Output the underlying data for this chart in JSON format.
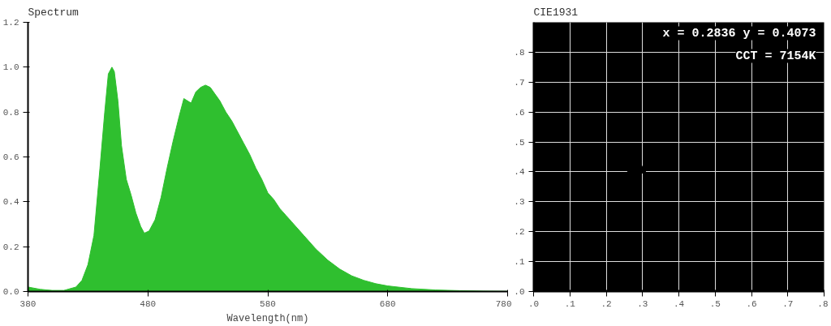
{
  "chart_data": [
    {
      "type": "area",
      "title": "Spectrum",
      "xlabel": "Wavelength(nm)",
      "x": [
        380,
        390,
        400,
        410,
        420,
        425,
        430,
        435,
        440,
        444,
        447,
        450,
        452,
        455,
        458,
        462,
        466,
        470,
        474,
        477,
        481,
        486,
        491,
        496,
        501,
        506,
        510,
        513,
        516,
        520,
        524,
        528,
        532,
        536,
        540,
        545,
        550,
        555,
        560,
        565,
        570,
        575,
        580,
        585,
        590,
        595,
        600,
        610,
        620,
        630,
        640,
        650,
        660,
        670,
        680,
        700,
        720,
        740,
        760,
        780
      ],
      "series": [
        {
          "color": "#2fbf2f",
          "values": [
            0.02,
            0.01,
            0.005,
            0.005,
            0.02,
            0.05,
            0.12,
            0.25,
            0.55,
            0.8,
            0.97,
            1.0,
            0.98,
            0.85,
            0.65,
            0.5,
            0.43,
            0.35,
            0.29,
            0.26,
            0.27,
            0.32,
            0.42,
            0.55,
            0.67,
            0.78,
            0.86,
            0.85,
            0.84,
            0.89,
            0.91,
            0.92,
            0.91,
            0.88,
            0.85,
            0.8,
            0.76,
            0.71,
            0.66,
            0.61,
            0.55,
            0.5,
            0.44,
            0.41,
            0.37,
            0.34,
            0.31,
            0.25,
            0.19,
            0.14,
            0.1,
            0.07,
            0.05,
            0.035,
            0.025,
            0.013,
            0.007,
            0.004,
            0.002,
            0.001
          ]
        }
      ],
      "xlim": [
        380,
        780
      ],
      "xticks": [
        380,
        480,
        580,
        680,
        780
      ],
      "ylim": [
        0,
        1.2
      ],
      "yticks": [
        {
          "value": 0,
          "label": "0.0"
        },
        0.2,
        0.4,
        0.6,
        0.8,
        {
          "value": 1,
          "label": "1.0"
        },
        1.2
      ],
      "grid": false
    },
    {
      "type": "scatter",
      "title": "CIE1931",
      "x": [
        0.2836
      ],
      "series": [
        {
          "color": "#000000",
          "values": [
            0.4073
          ]
        }
      ],
      "marker": "cross",
      "annotations": [
        "x = 0.2836 y = 0.4073",
        "CCT = 7154K"
      ],
      "xlim": [
        0,
        0.8
      ],
      "xticks": [
        {
          "value": 0,
          "label": ".0"
        },
        {
          "value": 0.1,
          "label": ".1"
        },
        {
          "value": 0.2,
          "label": ".2"
        },
        {
          "value": 0.3,
          "label": ".3"
        },
        {
          "value": 0.4,
          "label": ".4"
        },
        {
          "value": 0.5,
          "label": ".5"
        },
        {
          "value": 0.6,
          "label": ".6"
        },
        {
          "value": 0.7,
          "label": ".7"
        },
        {
          "value": 0.8,
          "label": ".8"
        }
      ],
      "ylim": [
        0,
        0.9
      ],
      "yticks": [
        {
          "value": 0,
          "label": ".0"
        },
        {
          "value": 0.1,
          "label": ".1"
        },
        {
          "value": 0.2,
          "label": ".2"
        },
        {
          "value": 0.3,
          "label": ".3"
        },
        {
          "value": 0.4,
          "label": ".4"
        },
        {
          "value": 0.5,
          "label": ".5"
        },
        {
          "value": 0.6,
          "label": ".6"
        },
        {
          "value": 0.7,
          "label": ".7"
        },
        {
          "value": 0.8,
          "label": ".8"
        }
      ],
      "grid": true
    }
  ]
}
